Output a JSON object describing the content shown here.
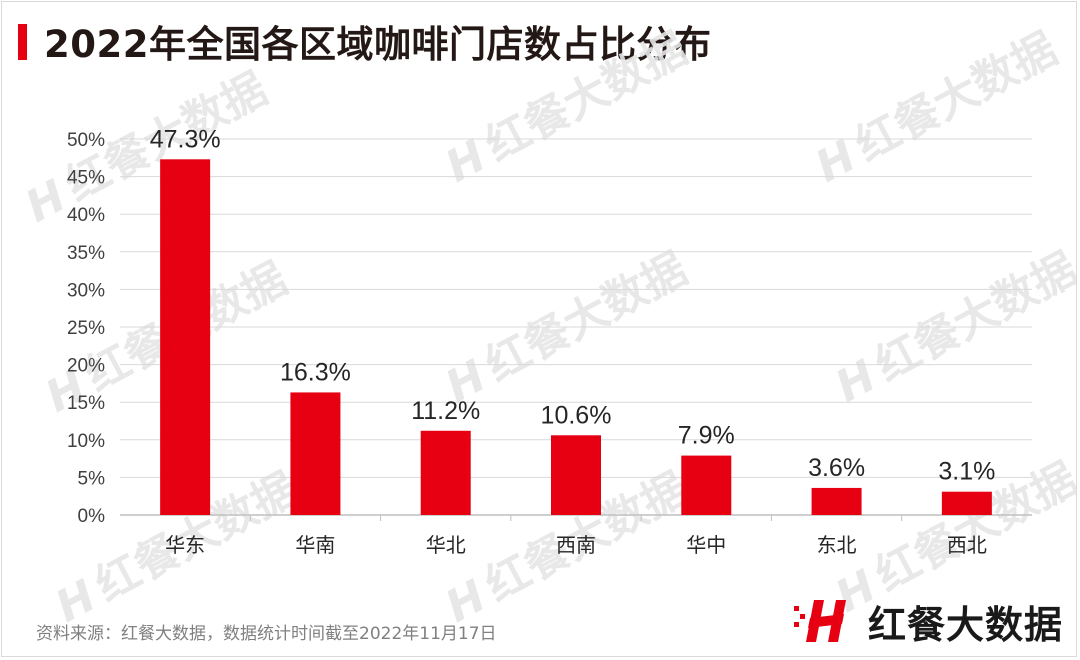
{
  "title": "2022年全国各区域咖啡门店数占比分布",
  "watermark_text": "红餐大数据",
  "source": "资料来源：红餐大数据，数据统计时间截至2022年11月17日",
  "brand_name": "红餐大数据",
  "colors": {
    "accent": "#e60012",
    "title": "#231815",
    "axis": "#bfbfbf",
    "grid": "#d9d9d9",
    "text": "#404040"
  },
  "chart_data": {
    "type": "bar",
    "title": "2022年全国各区域咖啡门店数占比分布",
    "xlabel": "",
    "ylabel": "",
    "categories": [
      "华东",
      "华南",
      "华北",
      "西南",
      "华中",
      "东北",
      "西北"
    ],
    "values": [
      47.3,
      16.3,
      11.2,
      10.6,
      7.9,
      3.6,
      3.1
    ],
    "value_labels": [
      "47.3%",
      "16.3%",
      "11.2%",
      "10.6%",
      "7.9%",
      "3.6%",
      "3.1%"
    ],
    "ylim": [
      0,
      50
    ],
    "yticks": [
      "0%",
      "5%",
      "10%",
      "15%",
      "20%",
      "25%",
      "30%",
      "35%",
      "40%",
      "45%",
      "50%"
    ],
    "grid": true,
    "legend": "none"
  }
}
